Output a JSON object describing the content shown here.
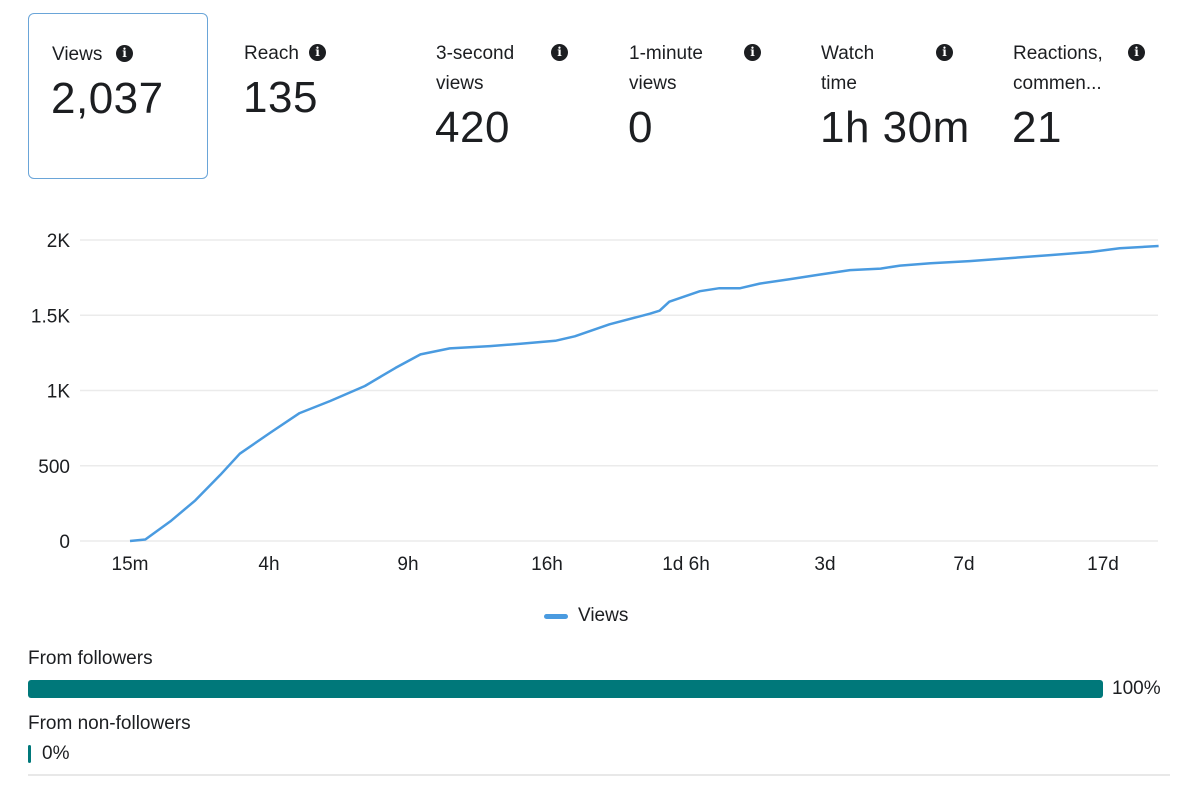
{
  "metrics": [
    {
      "label": "Views",
      "value": "2,037",
      "selected": true
    },
    {
      "label": "Reach",
      "value": "135"
    },
    {
      "label": "3-second views",
      "value": "420"
    },
    {
      "label": "1-minute views",
      "value": "0"
    },
    {
      "label": "Watch time",
      "value": "1h 30m"
    },
    {
      "label": "Reactions, commen...",
      "value": "21"
    }
  ],
  "colors": {
    "line": "#4a9be0",
    "bar": "#00787a",
    "selected_border": "#6aa5d8"
  },
  "chart_data": {
    "type": "line",
    "title": "",
    "xlabel": "",
    "ylabel": "",
    "categories": [
      "15m",
      "4h",
      "9h",
      "16h",
      "1d 6h",
      "3d",
      "7d",
      "17d"
    ],
    "y_ticks": [
      0,
      500,
      1000,
      1500,
      2000
    ],
    "y_tick_labels": [
      "0",
      "500",
      "1K",
      "1.5K",
      "2K"
    ],
    "ylim": [
      0,
      2000
    ],
    "xlim": [
      0,
      7.4
    ],
    "grid": true,
    "legend": "bottom-center",
    "series": [
      {
        "name": "Views",
        "x": [
          0,
          0.11,
          0.29,
          0.47,
          0.65,
          0.79,
          1.01,
          1.22,
          1.44,
          1.69,
          1.91,
          2.09,
          2.3,
          2.59,
          2.81,
          3.06,
          3.2,
          3.45,
          3.74,
          3.81,
          3.88,
          4.1,
          4.24,
          4.39,
          4.53,
          4.75,
          4.96,
          5.18,
          5.4,
          5.54,
          5.76,
          6.04,
          6.33,
          6.62,
          6.91,
          7.12,
          7.4
        ],
        "values": [
          0,
          10,
          130,
          270,
          440,
          580,
          720,
          850,
          930,
          1030,
          1150,
          1240,
          1280,
          1295,
          1310,
          1330,
          1360,
          1440,
          1510,
          1530,
          1590,
          1660,
          1680,
          1680,
          1710,
          1740,
          1770,
          1800,
          1810,
          1830,
          1845,
          1860,
          1880,
          1900,
          1920,
          1945,
          1960
        ]
      }
    ]
  },
  "legend": {
    "label": "Views"
  },
  "breakdown": [
    {
      "label": "From followers",
      "percent": 100,
      "percent_label": "100%"
    },
    {
      "label": "From non-followers",
      "percent": 0,
      "percent_label": "0%"
    }
  ]
}
